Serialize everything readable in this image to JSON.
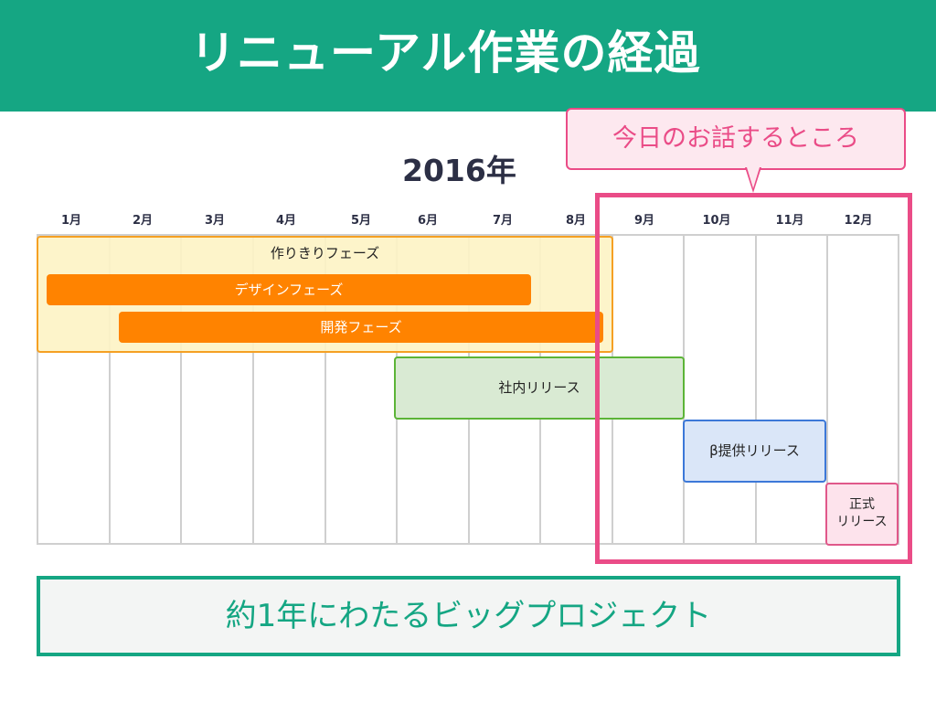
{
  "header": {
    "title": "リニューアル作業の経過"
  },
  "timeline": {
    "year": "2016年",
    "months": [
      "1月",
      "2月",
      "3月",
      "4月",
      "5月",
      "6月",
      "7月",
      "8月",
      "9月",
      "10月",
      "11月",
      "12月"
    ]
  },
  "callout": {
    "text": "今日のお話するところ"
  },
  "phases": {
    "group_label": "作りきりフェーズ",
    "design": "デザインフェーズ",
    "development": "開発フェーズ",
    "internal_release": "社内リリース",
    "beta_release": "β提供リリース",
    "official_release_line1": "正式",
    "official_release_line2": "リリース"
  },
  "summary": {
    "text": "約1年にわたるビッグプロジェクト"
  },
  "colors": {
    "brand_green": "#15a683",
    "highlight_pink": "#ea4c87",
    "phase_orange": "#ff8300",
    "phase_yellow_bg": "#fdf3c5",
    "internal_green_bg": "#d9ead3",
    "beta_blue_bg": "#dae6f8",
    "official_pink_bg": "#fde3ec"
  }
}
